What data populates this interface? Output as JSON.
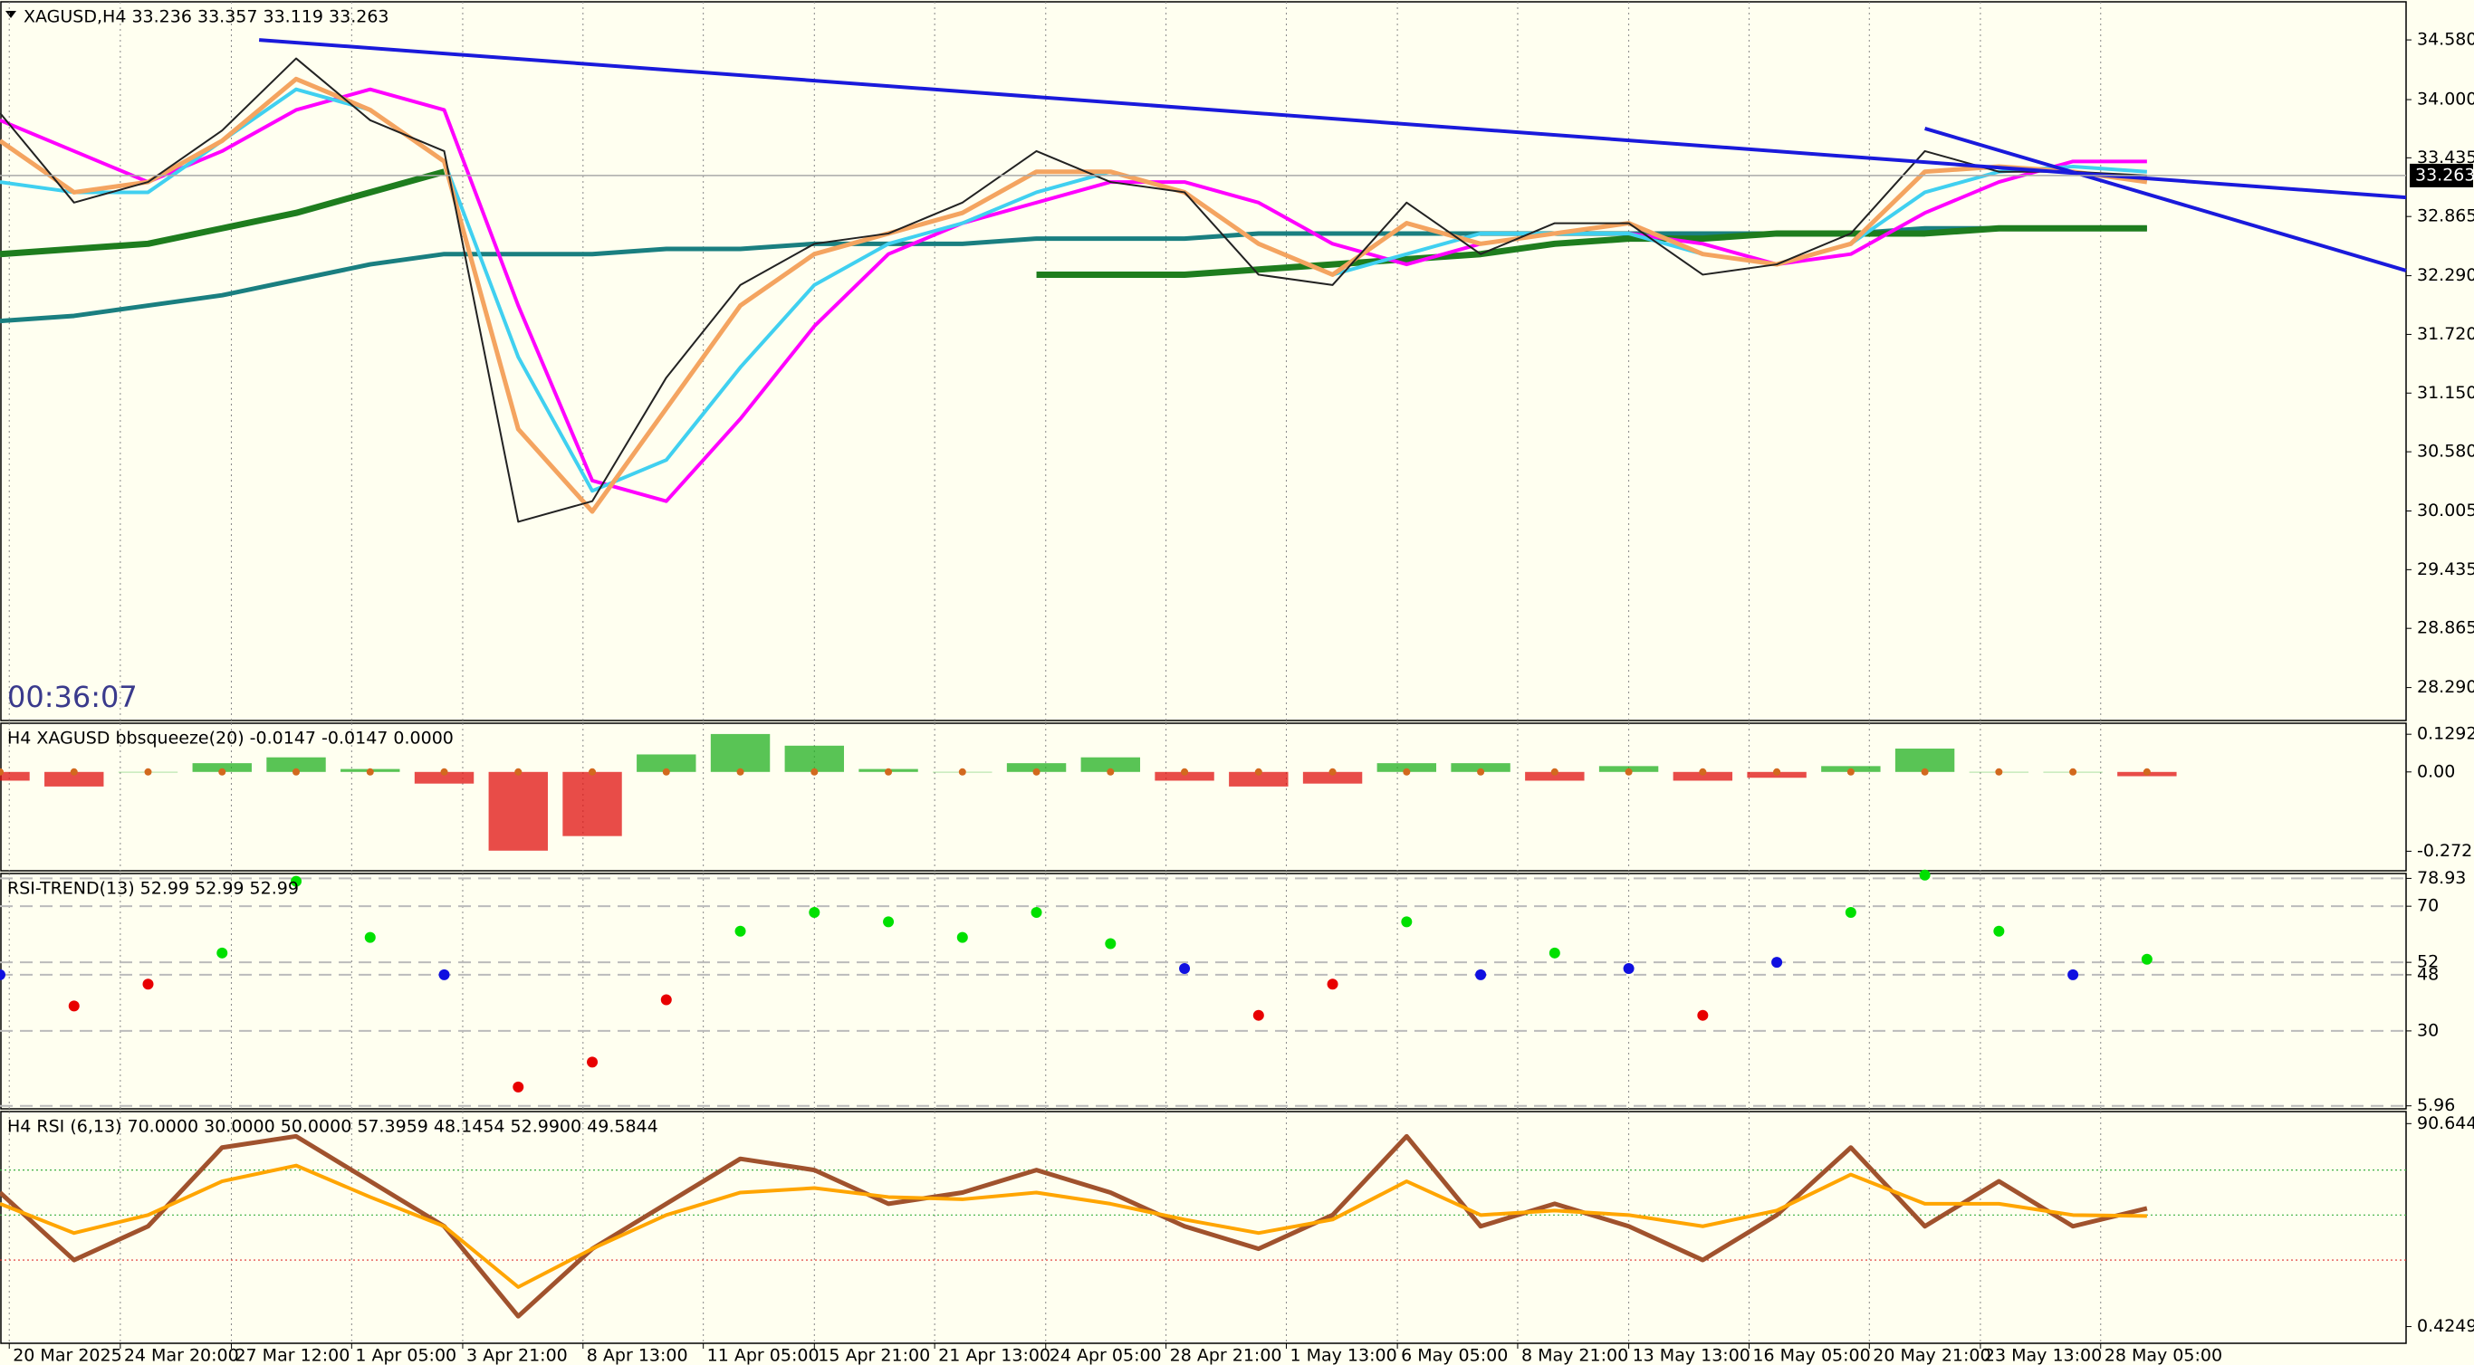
{
  "chart_data": [
    {
      "type": "line",
      "title": "XAGUSD,H4  33.236 33.357 33.119 33.263",
      "timer": "00:36:07",
      "x": [
        0,
        8,
        16,
        24,
        32,
        40,
        48,
        56,
        64,
        72,
        80,
        88,
        96,
        104,
        112,
        120,
        128,
        136,
        144,
        152,
        160,
        168,
        176,
        184,
        192,
        200,
        208,
        216,
        224,
        232
      ],
      "xlim": [
        0,
        260
      ],
      "xticks": [
        {
          "value": 1,
          "label": "20 Mar 2025"
        },
        {
          "value": 13,
          "label": "24 Mar 20:00"
        },
        {
          "value": 25,
          "label": "27 Mar 12:00"
        },
        {
          "value": 38,
          "label": "1 Apr 05:00"
        },
        {
          "value": 50,
          "label": "3 Apr 21:00"
        },
        {
          "value": 63,
          "label": "8 Apr 13:00"
        },
        {
          "value": 76,
          "label": "11 Apr 05:00"
        },
        {
          "value": 88,
          "label": "15 Apr 21:00"
        },
        {
          "value": 101,
          "label": "21 Apr 13:00"
        },
        {
          "value": 113,
          "label": "24 Apr 05:00"
        },
        {
          "value": 126,
          "label": "28 Apr 21:00"
        },
        {
          "value": 139,
          "label": "1 May 13:00"
        },
        {
          "value": 151,
          "label": "6 May 05:00"
        },
        {
          "value": 164,
          "label": "8 May 21:00"
        },
        {
          "value": 176,
          "label": "13 May 13:00"
        },
        {
          "value": 189,
          "label": "16 May 05:00"
        },
        {
          "value": 202,
          "label": "20 May 21:00"
        },
        {
          "value": 214,
          "label": "23 May 13:00"
        },
        {
          "value": 227,
          "label": "28 May 05:00"
        }
      ],
      "ylim": [
        27.97,
        34.95
      ],
      "yticks": [
        {
          "value": 34.58,
          "label": "34.580"
        },
        {
          "value": 34,
          "label": "34.000"
        },
        33.435,
        32.865,
        {
          "value": 32.29,
          "label": "32.290"
        },
        {
          "value": 31.72,
          "label": "31.720"
        },
        {
          "value": 31.15,
          "label": "31.150"
        },
        {
          "value": 30.58,
          "label": "30.580"
        },
        30.005,
        29.435,
        28.865,
        {
          "value": 28.29,
          "label": "28.290"
        }
      ],
      "last_price": {
        "value": 33.263,
        "label": "33.263"
      },
      "series": [
        {
          "color": "#1a7f80",
          "width": 5,
          "values": [
            31.85,
            31.9,
            32.0,
            32.1,
            32.25,
            32.4,
            32.5,
            32.5,
            32.5,
            32.55,
            32.55,
            32.6,
            32.6,
            32.6,
            32.65,
            32.65,
            32.65,
            32.7,
            32.7,
            32.7,
            32.7,
            32.7,
            32.7,
            32.7,
            32.7,
            32.7,
            32.75,
            32.75,
            32.75,
            32.75
          ]
        },
        {
          "color": "#1e7d1e",
          "width": 7,
          "values": [
            32.5,
            32.55,
            32.6,
            32.75,
            32.9,
            33.1,
            33.3,
            null,
            null,
            null,
            null,
            null,
            null,
            null,
            32.3,
            32.3,
            32.3,
            32.35,
            32.4,
            32.45,
            32.5,
            32.6,
            32.65,
            32.65,
            32.7,
            32.7,
            32.7,
            32.75,
            32.75,
            32.75
          ]
        },
        {
          "color": "#ff00ff",
          "width": 4,
          "values": [
            33.8,
            33.5,
            33.2,
            33.5,
            33.9,
            34.1,
            33.9,
            32.0,
            30.3,
            30.1,
            30.9,
            31.8,
            32.5,
            32.8,
            33.0,
            33.2,
            33.2,
            33.0,
            32.6,
            32.4,
            32.6,
            32.7,
            32.7,
            32.6,
            32.4,
            32.5,
            32.9,
            33.2,
            33.4,
            33.4
          ]
        },
        {
          "color": "#40d0f0",
          "width": 4,
          "values": [
            33.2,
            33.1,
            33.1,
            33.6,
            34.1,
            33.9,
            33.4,
            31.5,
            30.2,
            30.5,
            31.4,
            32.2,
            32.6,
            32.8,
            33.1,
            33.3,
            33.1,
            32.6,
            32.3,
            32.5,
            32.7,
            32.7,
            32.7,
            32.5,
            32.4,
            32.6,
            33.1,
            33.3,
            33.35,
            33.3
          ]
        },
        {
          "color": "#f4a460",
          "width": 5,
          "values": [
            33.6,
            33.1,
            33.2,
            33.6,
            34.2,
            33.9,
            33.4,
            30.8,
            30.0,
            31.0,
            32.0,
            32.5,
            32.7,
            32.9,
            33.3,
            33.3,
            33.1,
            32.6,
            32.3,
            32.8,
            32.6,
            32.7,
            32.8,
            32.5,
            32.4,
            32.6,
            33.3,
            33.35,
            33.3,
            33.2
          ]
        },
        {
          "color": "#222222",
          "width": 2,
          "values": [
            33.87,
            33.0,
            33.2,
            33.7,
            34.4,
            33.8,
            33.5,
            29.9,
            30.1,
            31.3,
            32.2,
            32.6,
            32.7,
            33.0,
            33.5,
            33.2,
            33.1,
            32.3,
            32.2,
            33.0,
            32.5,
            32.8,
            32.8,
            32.3,
            32.4,
            32.7,
            33.5,
            33.3,
            33.3,
            33.263
          ]
        }
      ],
      "trendlines": [
        {
          "color": "#1a1adb",
          "x": [
            28,
            260
          ],
          "values": [
            34.58,
            33.05
          ]
        },
        {
          "color": "#1a1adb",
          "x": [
            208,
            260
          ],
          "values": [
            33.72,
            32.34
          ]
        }
      ]
    },
    {
      "type": "bar",
      "title": "H4 XAGUSD bbsqueeze(20) -0.0147 -0.0147 0.0000",
      "ylim": [
        -0.339,
        0.167
      ],
      "yticks": [
        0.1292,
        {
          "value": 0,
          "label": "0.00"
        },
        -0.272
      ],
      "up_color": "#22b022",
      "down_color": "#e01010",
      "dot_color": "#d2691e",
      "values": [
        -0.03,
        -0.05,
        0.0,
        0.03,
        0.05,
        0.01,
        -0.04,
        -0.27,
        -0.22,
        0.06,
        0.13,
        0.09,
        0.01,
        0.0,
        0.03,
        0.05,
        -0.03,
        -0.05,
        -0.04,
        0.03,
        0.03,
        -0.03,
        0.02,
        -0.03,
        -0.02,
        0.02,
        0.08,
        0.0,
        0.0,
        -0.0147
      ]
    },
    {
      "type": "scatter",
      "title": "RSI-TREND(13) 52.99 52.99 52.99",
      "ylim": [
        5,
        80.5
      ],
      "yticks": [
        78.93,
        70,
        52,
        48,
        30,
        5.96
      ],
      "grid": true,
      "up_color": "#00e000",
      "down_color": "#e80000",
      "neutral_color": "#1010e0",
      "values": [
        48,
        38,
        45,
        55,
        78,
        60,
        48,
        12,
        20,
        40,
        62,
        68,
        65,
        60,
        68,
        58,
        50,
        35,
        45,
        65,
        48,
        55,
        50,
        35,
        52,
        68,
        80,
        62,
        48,
        52.99
      ]
    },
    {
      "type": "line",
      "title": "H4 RSI (6,13) 70.0000 30.0000 50.0000 57.3959 48.1454 52.9900 49.5844",
      "ylim": [
        -7,
        96
      ],
      "yticks": [
        90.6447,
        0.4249
      ],
      "levels": [
        {
          "value": 70,
          "color": "#3cb043"
        },
        {
          "value": 30,
          "color": "#e03030"
        },
        {
          "value": 50,
          "color": "#3cb043"
        }
      ],
      "series": [
        {
          "color": "#a0522d",
          "width": 5,
          "values": [
            60,
            30,
            45,
            80,
            85,
            65,
            45,
            5,
            35,
            55,
            75,
            70,
            55,
            60,
            70,
            60,
            45,
            35,
            50,
            85,
            45,
            55,
            45,
            30,
            50,
            80,
            45,
            65,
            45,
            52.99
          ]
        },
        {
          "color": "#ffa500",
          "width": 4,
          "values": [
            55,
            42,
            50,
            65,
            72,
            58,
            45,
            18,
            35,
            50,
            60,
            62,
            58,
            57,
            60,
            55,
            48,
            42,
            48,
            65,
            50,
            52,
            50,
            45,
            52,
            68,
            55,
            55,
            50,
            49.5844
          ]
        }
      ]
    }
  ]
}
